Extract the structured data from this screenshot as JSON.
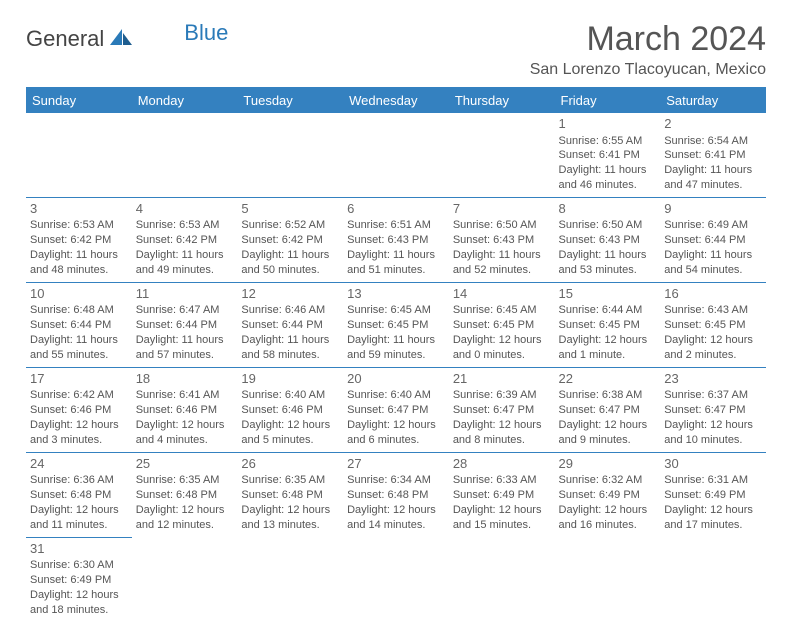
{
  "brand": {
    "part1": "General",
    "part2": "Blue"
  },
  "title": "March 2024",
  "location": "San Lorenzo Tlacoyucan, Mexico",
  "colors": {
    "header_bg": "#3481c0",
    "header_text": "#ffffff",
    "body_text": "#555555",
    "brand_blue": "#2a7ab8",
    "border": "#3481c0",
    "background": "#ffffff"
  },
  "weekdays": [
    "Sunday",
    "Monday",
    "Tuesday",
    "Wednesday",
    "Thursday",
    "Friday",
    "Saturday"
  ],
  "weeks": [
    [
      null,
      null,
      null,
      null,
      null,
      {
        "n": "1",
        "sr": "6:55 AM",
        "ss": "6:41 PM",
        "dl": "11 hours and 46 minutes."
      },
      {
        "n": "2",
        "sr": "6:54 AM",
        "ss": "6:41 PM",
        "dl": "11 hours and 47 minutes."
      }
    ],
    [
      {
        "n": "3",
        "sr": "6:53 AM",
        "ss": "6:42 PM",
        "dl": "11 hours and 48 minutes."
      },
      {
        "n": "4",
        "sr": "6:53 AM",
        "ss": "6:42 PM",
        "dl": "11 hours and 49 minutes."
      },
      {
        "n": "5",
        "sr": "6:52 AM",
        "ss": "6:42 PM",
        "dl": "11 hours and 50 minutes."
      },
      {
        "n": "6",
        "sr": "6:51 AM",
        "ss": "6:43 PM",
        "dl": "11 hours and 51 minutes."
      },
      {
        "n": "7",
        "sr": "6:50 AM",
        "ss": "6:43 PM",
        "dl": "11 hours and 52 minutes."
      },
      {
        "n": "8",
        "sr": "6:50 AM",
        "ss": "6:43 PM",
        "dl": "11 hours and 53 minutes."
      },
      {
        "n": "9",
        "sr": "6:49 AM",
        "ss": "6:44 PM",
        "dl": "11 hours and 54 minutes."
      }
    ],
    [
      {
        "n": "10",
        "sr": "6:48 AM",
        "ss": "6:44 PM",
        "dl": "11 hours and 55 minutes."
      },
      {
        "n": "11",
        "sr": "6:47 AM",
        "ss": "6:44 PM",
        "dl": "11 hours and 57 minutes."
      },
      {
        "n": "12",
        "sr": "6:46 AM",
        "ss": "6:44 PM",
        "dl": "11 hours and 58 minutes."
      },
      {
        "n": "13",
        "sr": "6:45 AM",
        "ss": "6:45 PM",
        "dl": "11 hours and 59 minutes."
      },
      {
        "n": "14",
        "sr": "6:45 AM",
        "ss": "6:45 PM",
        "dl": "12 hours and 0 minutes."
      },
      {
        "n": "15",
        "sr": "6:44 AM",
        "ss": "6:45 PM",
        "dl": "12 hours and 1 minute."
      },
      {
        "n": "16",
        "sr": "6:43 AM",
        "ss": "6:45 PM",
        "dl": "12 hours and 2 minutes."
      }
    ],
    [
      {
        "n": "17",
        "sr": "6:42 AM",
        "ss": "6:46 PM",
        "dl": "12 hours and 3 minutes."
      },
      {
        "n": "18",
        "sr": "6:41 AM",
        "ss": "6:46 PM",
        "dl": "12 hours and 4 minutes."
      },
      {
        "n": "19",
        "sr": "6:40 AM",
        "ss": "6:46 PM",
        "dl": "12 hours and 5 minutes."
      },
      {
        "n": "20",
        "sr": "6:40 AM",
        "ss": "6:47 PM",
        "dl": "12 hours and 6 minutes."
      },
      {
        "n": "21",
        "sr": "6:39 AM",
        "ss": "6:47 PM",
        "dl": "12 hours and 8 minutes."
      },
      {
        "n": "22",
        "sr": "6:38 AM",
        "ss": "6:47 PM",
        "dl": "12 hours and 9 minutes."
      },
      {
        "n": "23",
        "sr": "6:37 AM",
        "ss": "6:47 PM",
        "dl": "12 hours and 10 minutes."
      }
    ],
    [
      {
        "n": "24",
        "sr": "6:36 AM",
        "ss": "6:48 PM",
        "dl": "12 hours and 11 minutes."
      },
      {
        "n": "25",
        "sr": "6:35 AM",
        "ss": "6:48 PM",
        "dl": "12 hours and 12 minutes."
      },
      {
        "n": "26",
        "sr": "6:35 AM",
        "ss": "6:48 PM",
        "dl": "12 hours and 13 minutes."
      },
      {
        "n": "27",
        "sr": "6:34 AM",
        "ss": "6:48 PM",
        "dl": "12 hours and 14 minutes."
      },
      {
        "n": "28",
        "sr": "6:33 AM",
        "ss": "6:49 PM",
        "dl": "12 hours and 15 minutes."
      },
      {
        "n": "29",
        "sr": "6:32 AM",
        "ss": "6:49 PM",
        "dl": "12 hours and 16 minutes."
      },
      {
        "n": "30",
        "sr": "6:31 AM",
        "ss": "6:49 PM",
        "dl": "12 hours and 17 minutes."
      }
    ],
    [
      {
        "n": "31",
        "sr": "6:30 AM",
        "ss": "6:49 PM",
        "dl": "12 hours and 18 minutes."
      },
      null,
      null,
      null,
      null,
      null,
      null
    ]
  ],
  "labels": {
    "sunrise": "Sunrise:",
    "sunset": "Sunset:",
    "daylight": "Daylight:"
  }
}
